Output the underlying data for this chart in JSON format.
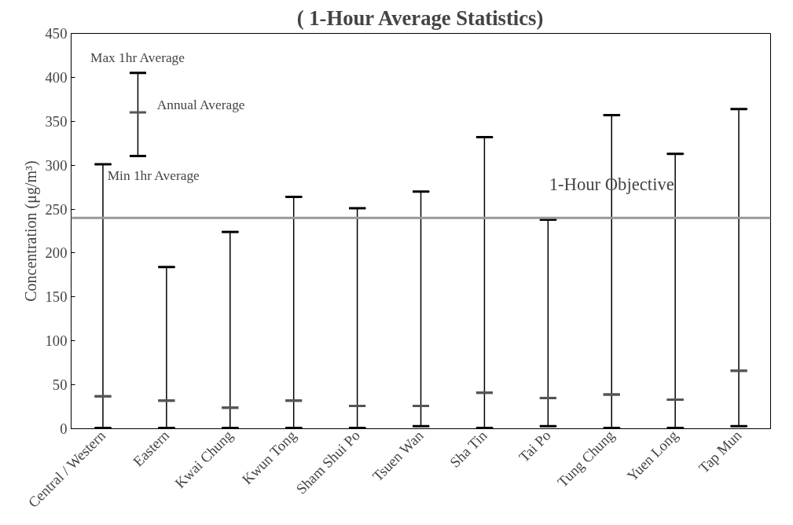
{
  "chart_data": {
    "type": "box",
    "title": "( 1-Hour Average Statistics)",
    "ylabel": "Concentration (μg/m³)",
    "categories": [
      "Central / Western",
      "Eastern",
      "Kwai Chung",
      "Kwun Tong",
      "Sham Shui Po",
      "Tsuen Wan",
      "Sha Tin",
      "Tai Po",
      "Tung Chung",
      "Yuen Long",
      "Tap Mun"
    ],
    "series": [
      {
        "name": "Annual Average",
        "color": "#555555",
        "boxes": [
          {
            "low": 1,
            "q1": 37,
            "median": 37,
            "q3": 37,
            "high": 301
          },
          {
            "low": 1,
            "q1": 32,
            "median": 32,
            "q3": 32,
            "high": 184
          },
          {
            "low": 1,
            "q1": 24,
            "median": 24,
            "q3": 24,
            "high": 224
          },
          {
            "low": 1,
            "q1": 32,
            "median": 32,
            "q3": 32,
            "high": 264
          },
          {
            "low": 1,
            "q1": 26,
            "median": 26,
            "q3": 26,
            "high": 251
          },
          {
            "low": 3,
            "q1": 26,
            "median": 26,
            "q3": 26,
            "high": 270
          },
          {
            "low": 1,
            "q1": 41,
            "median": 41,
            "q3": 41,
            "high": 332
          },
          {
            "low": 3,
            "q1": 35,
            "median": 35,
            "q3": 35,
            "high": 238
          },
          {
            "low": 1,
            "q1": 39,
            "median": 39,
            "q3": 39,
            "high": 357
          },
          {
            "low": 1,
            "q1": 33,
            "median": 33,
            "q3": 33,
            "high": 313
          },
          {
            "low": 3,
            "q1": 66,
            "median": 66,
            "q3": 66,
            "high": 364
          }
        ]
      }
    ],
    "legend": "top left",
    "annotations": [
      "Max 1hr Average",
      "Min 1hr Average"
    ],
    "ref_lines": [
      {
        "axis": "y",
        "value": 240,
        "label": "1-Hour Objective",
        "color": "#999999"
      }
    ],
    "ylim": [
      0,
      450
    ],
    "yticks": [
      0,
      50,
      100,
      150,
      200,
      250,
      300,
      350,
      400,
      450
    ],
    "grid": false
  }
}
